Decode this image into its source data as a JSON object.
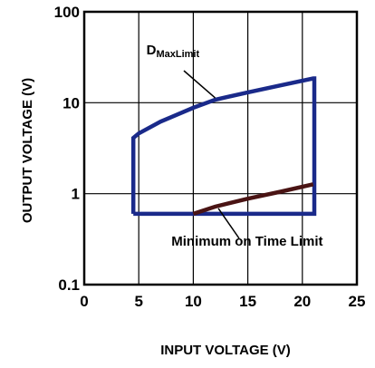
{
  "chart_data": {
    "type": "line",
    "title": "",
    "xlabel": "INPUT VOLTAGE (V)",
    "ylabel": "OUTPUT VOLTAGE (V)",
    "xlim": [
      0,
      25
    ],
    "ylim": [
      0.1,
      100
    ],
    "yscale": "log",
    "xticks": [
      "0",
      "5",
      "10",
      "15",
      "20",
      "25"
    ],
    "yticks": [
      "0.1",
      "1",
      "10",
      "100"
    ],
    "grid": true,
    "series": [
      {
        "name": "DMaxLimit",
        "color": "#1a2a8a",
        "x": [
          4.5,
          4.5,
          5,
          7,
          10,
          12,
          15,
          18,
          21,
          21.1,
          21.1,
          4.5
        ],
        "y": [
          0.6,
          4.1,
          4.6,
          6.2,
          8.8,
          10.8,
          13.0,
          15.5,
          18.5,
          18.5,
          0.6,
          0.6
        ]
      },
      {
        "name": "Minimum on Time Limit",
        "color": "#4a1414",
        "x": [
          10,
          12,
          15,
          18,
          21
        ],
        "y": [
          0.6,
          0.72,
          0.88,
          1.05,
          1.27
        ]
      }
    ],
    "annotations": [
      {
        "main": "D",
        "sub": "MaxLimit",
        "x": 5.7,
        "y": 40,
        "arrow_to": [
          12,
          10.8
        ]
      },
      {
        "main": "Minimum on Time Limit",
        "x": 7,
        "y": 0.3,
        "arrow_to": [
          12.3,
          0.72
        ]
      }
    ]
  }
}
